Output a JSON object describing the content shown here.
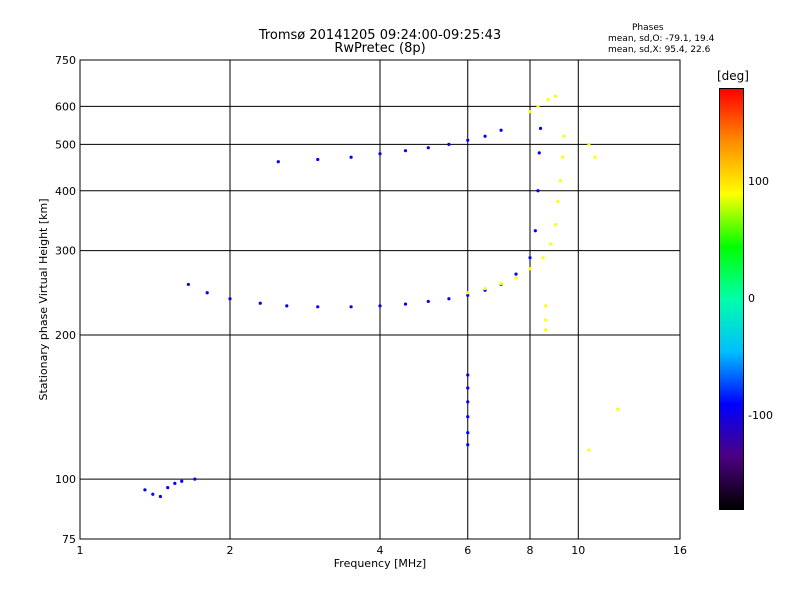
{
  "chart_data": {
    "type": "scatter",
    "title": "Tromsø 20141205 09:24:00-09:25:43",
    "subtitle": "RwPretec (8p)",
    "phase_header": {
      "title": "Phases",
      "line1": "mean, sd,O:  -79.1, 19.4",
      "line2": "mean, sd,X:  95.4, 22.6"
    },
    "xlabel": "Frequency [MHz]",
    "ylabel": "Stationary phase Virtual Height [km]",
    "x_scale": "log",
    "y_scale": "log",
    "xlim": [
      1,
      16
    ],
    "ylim": [
      75,
      750
    ],
    "x_ticks": [
      1,
      2,
      4,
      6,
      8,
      10,
      16
    ],
    "y_ticks": [
      75,
      100,
      200,
      300,
      400,
      500,
      600,
      750
    ],
    "grid": true,
    "colorbar": {
      "label": "[deg]",
      "range": [
        -180,
        180
      ],
      "ticks": [
        100,
        0,
        -100
      ],
      "colors": [
        "#000000",
        "#4b0082",
        "#0000ff",
        "#00bfff",
        "#00ffaa",
        "#00ff00",
        "#ffff00",
        "#ff8c00",
        "#ff0000"
      ]
    },
    "series": [
      {
        "name": "O-mode",
        "mean_phase": -79.1,
        "sd": 19.4,
        "points": [
          [
            1.65,
            255
          ],
          [
            1.8,
            245
          ],
          [
            2.0,
            238
          ],
          [
            2.3,
            233
          ],
          [
            2.6,
            230
          ],
          [
            3.0,
            229
          ],
          [
            3.5,
            229
          ],
          [
            4.0,
            230
          ],
          [
            4.5,
            232
          ],
          [
            5.0,
            235
          ],
          [
            5.5,
            238
          ],
          [
            6.0,
            242
          ],
          [
            6.5,
            248
          ],
          [
            7.0,
            255
          ],
          [
            7.5,
            268
          ],
          [
            8.0,
            290
          ],
          [
            8.2,
            330
          ],
          [
            8.3,
            400
          ],
          [
            8.35,
            480
          ],
          [
            8.4,
            540
          ],
          [
            2.5,
            460
          ],
          [
            3.0,
            465
          ],
          [
            3.5,
            470
          ],
          [
            4.0,
            478
          ],
          [
            4.5,
            485
          ],
          [
            5.0,
            492
          ],
          [
            5.5,
            500
          ],
          [
            6.0,
            510
          ],
          [
            6.5,
            520
          ],
          [
            7.0,
            535
          ],
          [
            1.35,
            95
          ],
          [
            1.4,
            93
          ],
          [
            1.45,
            92
          ],
          [
            1.5,
            96
          ],
          [
            1.55,
            98
          ],
          [
            1.6,
            99
          ],
          [
            1.7,
            100
          ],
          [
            6.0,
            165
          ],
          [
            6.0,
            155
          ],
          [
            6.0,
            145
          ],
          [
            6.0,
            135
          ],
          [
            6.0,
            125
          ],
          [
            6.0,
            118
          ]
        ]
      },
      {
        "name": "X-mode",
        "mean_phase": 95.4,
        "sd": 22.6,
        "points": [
          [
            6.0,
            245
          ],
          [
            6.5,
            250
          ],
          [
            7.0,
            256
          ],
          [
            7.5,
            263
          ],
          [
            8.0,
            275
          ],
          [
            8.5,
            290
          ],
          [
            8.8,
            310
          ],
          [
            9.0,
            340
          ],
          [
            9.1,
            380
          ],
          [
            9.2,
            420
          ],
          [
            9.3,
            470
          ],
          [
            9.35,
            520
          ],
          [
            8.0,
            585
          ],
          [
            8.3,
            600
          ],
          [
            8.7,
            620
          ],
          [
            9.0,
            630
          ],
          [
            8.6,
            230
          ],
          [
            8.6,
            215
          ],
          [
            8.6,
            205
          ],
          [
            10.5,
            500
          ],
          [
            10.8,
            470
          ],
          [
            10.5,
            115
          ],
          [
            12.0,
            140
          ]
        ]
      }
    ]
  }
}
